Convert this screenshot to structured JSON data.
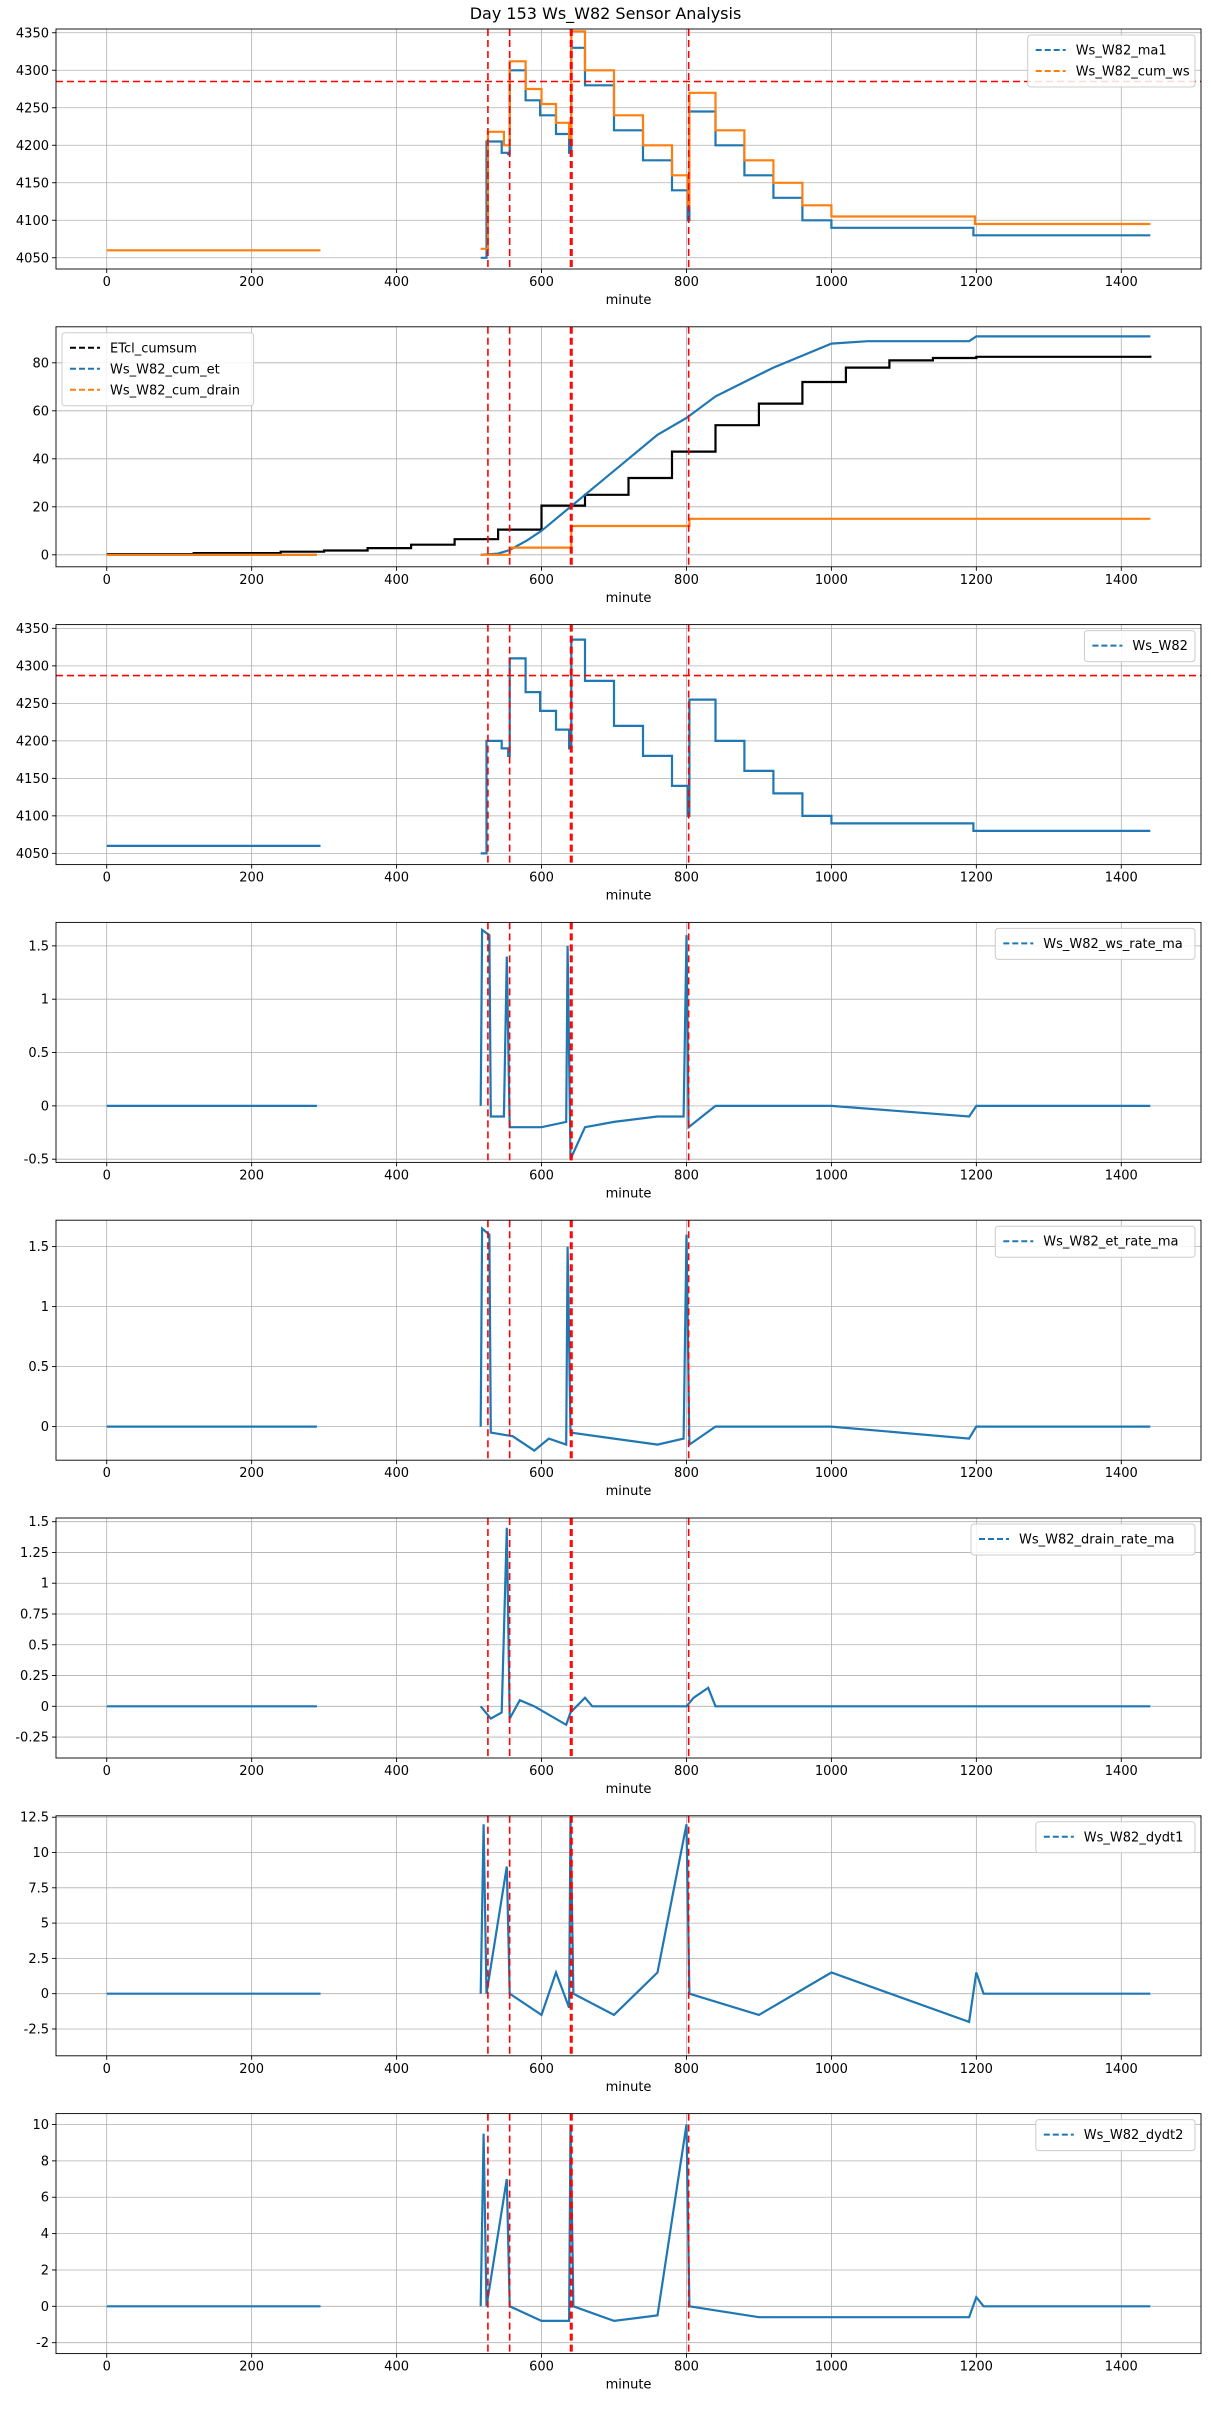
{
  "title": "Day 153 Ws_W82 Sensor Analysis",
  "colors": {
    "blue": "#1f77b4",
    "orange": "#ff7f0e",
    "black": "#000000",
    "red": "#ff0000",
    "grid": "#b0b0b0"
  },
  "xaxis": {
    "label": "minute",
    "lim": [
      -70,
      1510
    ],
    "ticks": [
      0,
      200,
      400,
      600,
      800,
      1000,
      1200,
      1400
    ]
  },
  "vlines": [
    526,
    556,
    640,
    642,
    803
  ],
  "chart_data": [
    {
      "type": "line",
      "ylim": [
        4035,
        4355
      ],
      "yticks": [
        4050,
        4100,
        4150,
        4200,
        4250,
        4300,
        4350
      ],
      "legend": "top-right",
      "hline": 4285,
      "series": [
        {
          "name": "Ws_W82_ma1",
          "color": "blue",
          "step": true,
          "points": [
            [
              516,
              4050
            ],
            [
              522,
              4050
            ],
            [
              524,
              4205
            ],
            [
              545,
              4190
            ],
            [
              554,
              4188
            ],
            [
              556,
              4300
            ],
            [
              578,
              4260
            ],
            [
              598,
              4240
            ],
            [
              620,
              4215
            ],
            [
              638,
              4190
            ],
            [
              641,
              4330
            ],
            [
              660,
              4280
            ],
            [
              700,
              4220
            ],
            [
              740,
              4180
            ],
            [
              780,
              4140
            ],
            [
              802,
              4100
            ],
            [
              804,
              4245
            ],
            [
              840,
              4200
            ],
            [
              880,
              4160
            ],
            [
              920,
              4130
            ],
            [
              960,
              4100
            ],
            [
              1000,
              4090
            ],
            [
              1190,
              4090
            ],
            [
              1196,
              4080
            ],
            [
              1440,
              4080
            ]
          ]
        },
        {
          "name": "Ws_W82_cum_ws",
          "color": "orange",
          "step": true,
          "points": [
            [
              0,
              4060
            ],
            [
              295,
              4060
            ],
            null,
            [
              516,
              4062
            ],
            [
              524,
              4062
            ],
            [
              526,
              4218
            ],
            [
              548,
              4200
            ],
            [
              554,
              4200
            ],
            [
              556,
              4312
            ],
            [
              578,
              4275
            ],
            [
              600,
              4255
            ],
            [
              620,
              4230
            ],
            [
              638,
              4210
            ],
            [
              641,
              4352
            ],
            [
              660,
              4300
            ],
            [
              700,
              4240
            ],
            [
              740,
              4200
            ],
            [
              780,
              4160
            ],
            [
              802,
              4120
            ],
            [
              804,
              4270
            ],
            [
              840,
              4220
            ],
            [
              880,
              4180
            ],
            [
              920,
              4150
            ],
            [
              960,
              4120
            ],
            [
              1000,
              4105
            ],
            [
              1196,
              4105
            ],
            [
              1198,
              4095
            ],
            [
              1440,
              4095
            ]
          ]
        }
      ]
    },
    {
      "type": "line",
      "ylim": [
        -5,
        95
      ],
      "yticks": [
        0,
        20,
        40,
        60,
        80
      ],
      "legend": "top-left",
      "series": [
        {
          "name": "ETcl_cumsum",
          "color": "black",
          "step": true,
          "points": [
            [
              0,
              0.3
            ],
            [
              120,
              0.7
            ],
            [
              240,
              1.3
            ],
            [
              300,
              1.8
            ],
            [
              360,
              2.8
            ],
            [
              420,
              4.2
            ],
            [
              480,
              6.5
            ],
            [
              540,
              10.5
            ],
            [
              600,
              20.5
            ],
            [
              660,
              25
            ],
            [
              720,
              32
            ],
            [
              780,
              43
            ],
            [
              840,
              54
            ],
            [
              900,
              63
            ],
            [
              960,
              72
            ],
            [
              1020,
              78
            ],
            [
              1080,
              81
            ],
            [
              1140,
              82
            ],
            [
              1200,
              82.5
            ],
            [
              1440,
              83
            ]
          ]
        },
        {
          "name": "Ws_W82_cum_et",
          "color": "blue",
          "step": false,
          "points": [
            [
              0,
              0
            ],
            [
              290,
              0
            ],
            null,
            [
              516,
              0
            ],
            [
              540,
              0.5
            ],
            [
              556,
              2
            ],
            [
              580,
              6
            ],
            [
              600,
              10
            ],
            [
              620,
              15
            ],
            [
              640,
              20
            ],
            [
              680,
              30
            ],
            [
              720,
              40
            ],
            [
              760,
              50
            ],
            [
              800,
              57
            ],
            [
              840,
              66
            ],
            [
              880,
              72
            ],
            [
              920,
              78
            ],
            [
              960,
              83
            ],
            [
              1000,
              88
            ],
            [
              1050,
              89
            ],
            [
              1190,
              89
            ],
            [
              1200,
              91
            ],
            [
              1440,
              91
            ]
          ]
        },
        {
          "name": "Ws_W82_cum_drain",
          "color": "orange",
          "step": true,
          "points": [
            [
              0,
              0
            ],
            [
              290,
              0
            ],
            null,
            [
              516,
              0
            ],
            [
              554,
              0
            ],
            [
              556,
              3
            ],
            [
              638,
              3
            ],
            [
              641,
              12
            ],
            [
              800,
              12
            ],
            [
              804,
              15
            ],
            [
              1440,
              15
            ]
          ]
        }
      ]
    },
    {
      "type": "line",
      "ylim": [
        4035,
        4355
      ],
      "yticks": [
        4050,
        4100,
        4150,
        4200,
        4250,
        4300,
        4350
      ],
      "legend": "top-right",
      "hline": 4287,
      "series": [
        {
          "name": "Ws_W82",
          "color": "blue",
          "step": true,
          "points": [
            [
              0,
              4060
            ],
            [
              295,
              4060
            ],
            null,
            [
              516,
              4050
            ],
            [
              522,
              4050
            ],
            [
              524,
              4200
            ],
            [
              545,
              4190
            ],
            [
              554,
              4180
            ],
            [
              556,
              4310
            ],
            [
              578,
              4265
            ],
            [
              598,
              4240
            ],
            [
              620,
              4215
            ],
            [
              638,
              4190
            ],
            [
              641,
              4335
            ],
            [
              660,
              4280
            ],
            [
              700,
              4220
            ],
            [
              740,
              4180
            ],
            [
              780,
              4140
            ],
            [
              802,
              4100
            ],
            [
              804,
              4255
            ],
            [
              840,
              4200
            ],
            [
              880,
              4160
            ],
            [
              920,
              4130
            ],
            [
              960,
              4100
            ],
            [
              1000,
              4090
            ],
            [
              1190,
              4090
            ],
            [
              1196,
              4080
            ],
            [
              1440,
              4080
            ]
          ]
        }
      ]
    },
    {
      "type": "line",
      "ylim": [
        -0.53,
        1.72
      ],
      "yticks": [
        -0.5,
        0.0,
        0.5,
        1.0,
        1.5
      ],
      "legend": "top-right",
      "series": [
        {
          "name": "Ws_W82_ws_rate_ma",
          "color": "blue",
          "step": false,
          "points": [
            [
              0,
              0
            ],
            [
              290,
              0
            ],
            null,
            [
              516,
              0
            ],
            [
              518,
              1.65
            ],
            [
              528,
              1.6
            ],
            [
              530,
              -0.1
            ],
            [
              548,
              -0.1
            ],
            [
              552,
              1.4
            ],
            [
              556,
              -0.2
            ],
            [
              600,
              -0.2
            ],
            [
              634,
              -0.15
            ],
            [
              636,
              1.5
            ],
            [
              640,
              -0.5
            ],
            [
              660,
              -0.2
            ],
            [
              700,
              -0.15
            ],
            [
              760,
              -0.1
            ],
            [
              796,
              -0.1
            ],
            [
              800,
              1.6
            ],
            [
              803,
              -0.2
            ],
            [
              840,
              0
            ],
            [
              1000,
              0
            ],
            [
              1190,
              -0.1
            ],
            [
              1200,
              0
            ],
            [
              1440,
              0
            ]
          ]
        }
      ]
    },
    {
      "type": "line",
      "ylim": [
        -0.28,
        1.72
      ],
      "yticks": [
        0.0,
        0.5,
        1.0,
        1.5
      ],
      "legend": "top-right",
      "series": [
        {
          "name": "Ws_W82_et_rate_ma",
          "color": "blue",
          "step": false,
          "points": [
            [
              0,
              0
            ],
            [
              290,
              0
            ],
            null,
            [
              516,
              0
            ],
            [
              518,
              1.65
            ],
            [
              528,
              1.6
            ],
            [
              530,
              -0.05
            ],
            [
              560,
              -0.08
            ],
            [
              590,
              -0.2
            ],
            [
              610,
              -0.1
            ],
            [
              634,
              -0.15
            ],
            [
              636,
              1.5
            ],
            [
              640,
              -0.05
            ],
            [
              700,
              -0.1
            ],
            [
              760,
              -0.15
            ],
            [
              796,
              -0.1
            ],
            [
              800,
              1.6
            ],
            [
              804,
              -0.15
            ],
            [
              840,
              0
            ],
            [
              1000,
              0
            ],
            [
              1190,
              -0.1
            ],
            [
              1200,
              0
            ],
            [
              1440,
              0
            ]
          ]
        }
      ]
    },
    {
      "type": "line",
      "ylim": [
        -0.42,
        1.53
      ],
      "yticks": [
        -0.25,
        0.0,
        0.25,
        0.5,
        0.75,
        1.0,
        1.25,
        1.5
      ],
      "legend": "top-right",
      "series": [
        {
          "name": "Ws_W82_drain_rate_ma",
          "color": "blue",
          "step": false,
          "points": [
            [
              0,
              0
            ],
            [
              290,
              0
            ],
            null,
            [
              516,
              0
            ],
            [
              530,
              -0.1
            ],
            [
              545,
              -0.05
            ],
            [
              552,
              1.45
            ],
            [
              556,
              -0.1
            ],
            [
              570,
              0.05
            ],
            [
              590,
              0
            ],
            [
              634,
              -0.15
            ],
            [
              640,
              -0.05
            ],
            [
              660,
              0.07
            ],
            [
              670,
              0
            ],
            [
              800,
              0
            ],
            [
              810,
              0.07
            ],
            [
              830,
              0.15
            ],
            [
              840,
              0
            ],
            [
              1440,
              0
            ]
          ]
        }
      ]
    },
    {
      "type": "line",
      "ylim": [
        -4.4,
        12.6
      ],
      "yticks": [
        -2.5,
        0.0,
        2.5,
        5.0,
        7.5,
        10.0,
        12.5
      ],
      "legend": "top-right",
      "series": [
        {
          "name": "Ws_W82_dydt1",
          "color": "blue",
          "step": false,
          "points": [
            [
              0,
              0
            ],
            [
              295,
              0
            ],
            null,
            [
              516,
              0
            ],
            [
              520,
              12
            ],
            [
              524,
              0
            ],
            [
              552,
              9
            ],
            [
              556,
              0
            ],
            [
              600,
              -1.5
            ],
            [
              620,
              1.5
            ],
            [
              638,
              -1
            ],
            [
              640,
              12.5
            ],
            [
              644,
              0
            ],
            [
              700,
              -1.5
            ],
            [
              760,
              1.5
            ],
            [
              800,
              12
            ],
            [
              804,
              0
            ],
            [
              900,
              -1.5
            ],
            [
              1000,
              1.5
            ],
            [
              1190,
              -2
            ],
            [
              1200,
              1.5
            ],
            [
              1210,
              0
            ],
            [
              1440,
              0
            ]
          ]
        }
      ]
    },
    {
      "type": "line",
      "ylim": [
        -2.6,
        10.6
      ],
      "yticks": [
        -2,
        0,
        2,
        4,
        6,
        8,
        10
      ],
      "legend": "top-right",
      "series": [
        {
          "name": "Ws_W82_dydt2",
          "color": "blue",
          "step": false,
          "points": [
            [
              0,
              0
            ],
            [
              295,
              0
            ],
            null,
            [
              516,
              0
            ],
            [
              520,
              9.5
            ],
            [
              524,
              0
            ],
            [
              552,
              7
            ],
            [
              556,
              0
            ],
            [
              600,
              -0.8
            ],
            [
              638,
              -0.8
            ],
            [
              640,
              10
            ],
            [
              644,
              0
            ],
            [
              700,
              -0.8
            ],
            [
              760,
              -0.5
            ],
            [
              800,
              10
            ],
            [
              804,
              0
            ],
            [
              900,
              -0.6
            ],
            [
              1000,
              -0.6
            ],
            [
              1190,
              -0.6
            ],
            [
              1200,
              0.5
            ],
            [
              1210,
              0
            ],
            [
              1440,
              0
            ]
          ]
        }
      ]
    }
  ]
}
